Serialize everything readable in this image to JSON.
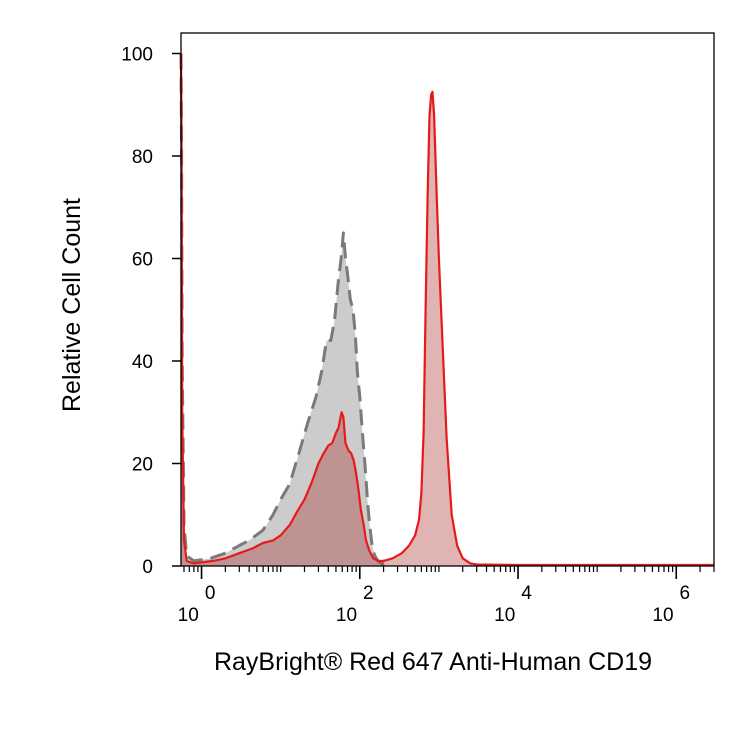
{
  "chart_data": {
    "type": "area",
    "xlabel": "RayBright® Red 647 Anti-Human CD19",
    "ylabel": "Relative Cell Count",
    "x_scale": "log",
    "xlim": [
      0.55,
      3000000
    ],
    "ylim": [
      0,
      104
    ],
    "y_ticks": [
      0,
      20,
      40,
      60,
      80,
      100
    ],
    "y_tick_labels": [
      "0",
      "20",
      "40",
      "60",
      "80",
      "100"
    ],
    "x_major_ticks": [
      1,
      100,
      10000,
      1000000
    ],
    "x_tick_labels": [
      {
        "base": "10",
        "exp": "0"
      },
      {
        "base": "10",
        "exp": "2"
      },
      {
        "base": "10",
        "exp": "4"
      },
      {
        "base": "10",
        "exp": "6"
      }
    ],
    "grid": false,
    "legend": "none",
    "series": [
      {
        "style": "gray filled, dashed outline",
        "fill": "#cccccc",
        "stroke": "#7a7a7a",
        "points": [
          [
            0.55,
            100
          ],
          [
            0.56,
            80
          ],
          [
            0.57,
            40
          ],
          [
            0.6,
            8
          ],
          [
            0.65,
            2
          ],
          [
            0.8,
            1
          ],
          [
            1.3,
            1.5
          ],
          [
            2,
            2.5
          ],
          [
            3,
            4
          ],
          [
            4,
            5
          ],
          [
            6,
            7
          ],
          [
            8,
            10
          ],
          [
            10,
            13
          ],
          [
            13,
            16
          ],
          [
            17,
            22
          ],
          [
            22,
            28
          ],
          [
            28,
            33
          ],
          [
            33,
            38
          ],
          [
            38,
            44
          ],
          [
            43,
            44
          ],
          [
            48,
            48
          ],
          [
            53,
            55
          ],
          [
            58,
            60
          ],
          [
            62,
            65
          ],
          [
            66,
            60
          ],
          [
            70,
            57
          ],
          [
            76,
            52
          ],
          [
            82,
            50
          ],
          [
            88,
            45
          ],
          [
            93,
            38
          ],
          [
            100,
            33
          ],
          [
            108,
            26
          ],
          [
            116,
            20
          ],
          [
            125,
            13
          ],
          [
            133,
            8
          ],
          [
            143,
            4
          ],
          [
            155,
            2
          ],
          [
            170,
            1
          ],
          [
            190,
            0.5
          ],
          [
            230,
            0
          ]
        ]
      },
      {
        "style": "red outlined, brown translucent fill",
        "fill": "rgba(170,40,40,0.35)",
        "stroke": "#e51a1a",
        "points": [
          [
            0.55,
            100
          ],
          [
            0.56,
            80
          ],
          [
            0.57,
            30
          ],
          [
            0.6,
            5
          ],
          [
            0.65,
            1
          ],
          [
            0.8,
            0.5
          ],
          [
            1.4,
            1
          ],
          [
            2,
            1.5
          ],
          [
            3,
            2.5
          ],
          [
            4.5,
            3.5
          ],
          [
            6,
            4.5
          ],
          [
            8,
            5
          ],
          [
            10,
            6
          ],
          [
            13,
            8
          ],
          [
            16,
            10.5
          ],
          [
            20,
            13
          ],
          [
            25,
            16.5
          ],
          [
            30,
            20
          ],
          [
            35,
            22
          ],
          [
            40,
            23.5
          ],
          [
            45,
            24
          ],
          [
            50,
            26
          ],
          [
            54,
            27
          ],
          [
            57,
            29
          ],
          [
            59,
            30
          ],
          [
            62,
            29
          ],
          [
            66,
            24
          ],
          [
            72,
            22.5
          ],
          [
            78,
            22
          ],
          [
            84,
            20.5
          ],
          [
            90,
            18
          ],
          [
            96,
            15
          ],
          [
            103,
            11
          ],
          [
            112,
            8
          ],
          [
            120,
            5
          ],
          [
            132,
            3
          ],
          [
            148,
            1.5
          ],
          [
            170,
            1
          ],
          [
            200,
            1
          ],
          [
            260,
            1.5
          ],
          [
            340,
            2.5
          ],
          [
            420,
            4
          ],
          [
            500,
            6
          ],
          [
            560,
            9
          ],
          [
            600,
            14
          ],
          [
            640,
            26
          ],
          [
            680,
            50
          ],
          [
            720,
            72
          ],
          [
            760,
            88
          ],
          [
            800,
            92
          ],
          [
            830,
            92.5
          ],
          [
            870,
            88
          ],
          [
            930,
            74
          ],
          [
            1000,
            60
          ],
          [
            1100,
            45
          ],
          [
            1250,
            25
          ],
          [
            1450,
            10
          ],
          [
            1700,
            4
          ],
          [
            2000,
            1.5
          ],
          [
            2500,
            0.5
          ],
          [
            3000,
            0.3
          ],
          [
            10000,
            0.2
          ],
          [
            100000,
            0.2
          ],
          [
            3000000,
            0.2
          ]
        ]
      }
    ]
  }
}
